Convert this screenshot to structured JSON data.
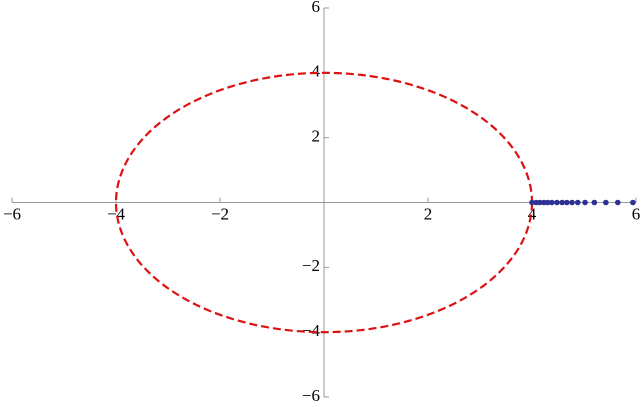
{
  "chart_data": {
    "type": "scatter",
    "xlim": [
      -6,
      6
    ],
    "ylim": [
      -6,
      6
    ],
    "xticks": [
      {
        "value": -6,
        "label": "−6"
      },
      {
        "value": -4,
        "label": "−4"
      },
      {
        "value": -2,
        "label": "−2"
      },
      2,
      4,
      6
    ],
    "yticks": [
      {
        "value": -6,
        "label": "−6"
      },
      {
        "value": -4,
        "label": "−4"
      },
      {
        "value": -2,
        "label": "−2"
      },
      2,
      4,
      6
    ],
    "curves": [
      {
        "shape": "circle",
        "center_x": 0,
        "center_y": 0,
        "radius": 4,
        "color": "#dd1111",
        "dashed": true
      }
    ],
    "points": {
      "color": "#2e3192",
      "x": [
        4.0,
        4.08,
        4.15,
        4.23,
        4.3,
        4.38,
        4.48,
        4.58,
        4.67,
        4.77,
        4.88,
        5.02,
        5.2,
        5.42,
        5.65,
        5.94
      ],
      "y": [
        0,
        0,
        0,
        0,
        0,
        0,
        0,
        0,
        0,
        0,
        0,
        0,
        0,
        0,
        0,
        0
      ]
    }
  }
}
